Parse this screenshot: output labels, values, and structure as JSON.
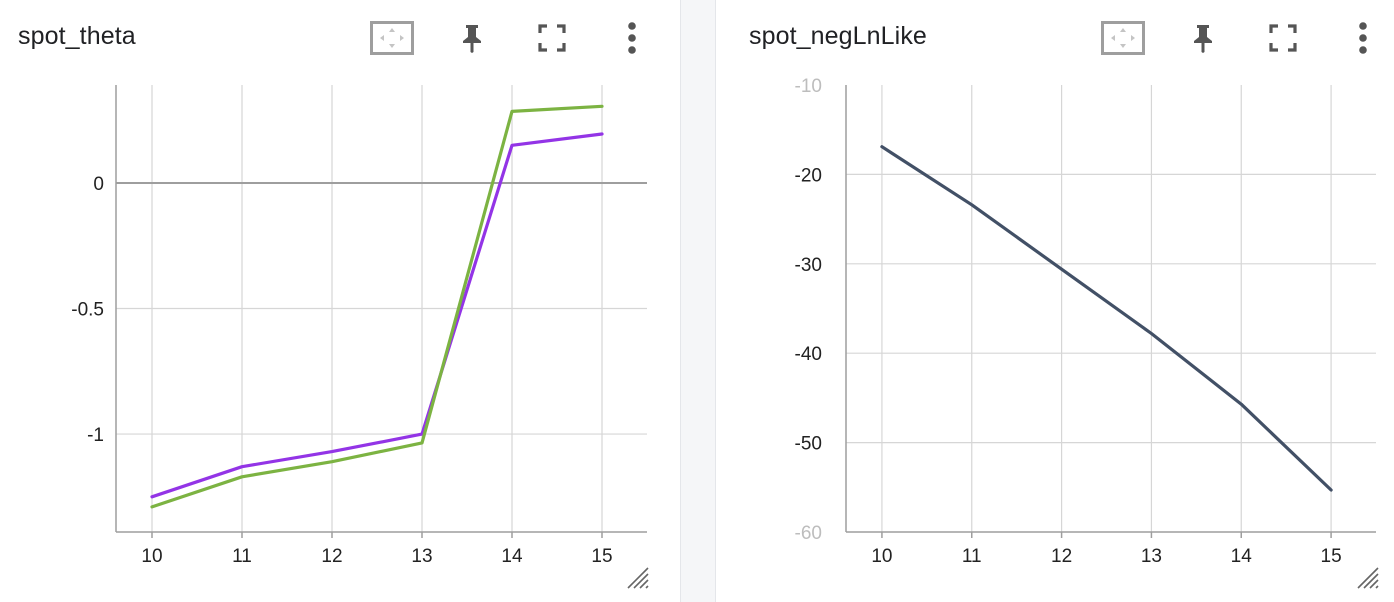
{
  "cards": [
    {
      "title": "spot_theta",
      "toolbar": [
        "fit-domain-icon",
        "pin-icon",
        "fullscreen-icon",
        "more-vert-icon"
      ],
      "chart_data": {
        "type": "line",
        "title": "spot_theta",
        "xlabel": "",
        "ylabel": "",
        "x": [
          10,
          11,
          12,
          13,
          14,
          15
        ],
        "xticks": [
          "10",
          "11",
          "12",
          "13",
          "14",
          "15"
        ],
        "xlim": [
          9.6,
          15.5
        ],
        "yticks": [
          0,
          -0.5,
          -1
        ],
        "ytick_labels": [
          "0",
          "-0.5",
          "-1"
        ],
        "ylim": [
          -1.39,
          0.39
        ],
        "zero_line": true,
        "grid": true,
        "series": [
          {
            "color": "#9334e6",
            "values": [
              -1.25,
              -1.13,
              -1.07,
              -1.0,
              0.15,
              0.195
            ]
          },
          {
            "color": "#7cb342",
            "values": [
              -1.29,
              -1.17,
              -1.11,
              -1.035,
              0.285,
              0.305
            ]
          }
        ]
      }
    },
    {
      "title": "spot_negLnLike",
      "toolbar": [
        "fit-domain-icon",
        "pin-icon",
        "fullscreen-icon",
        "more-vert-icon"
      ],
      "chart_data": {
        "type": "line",
        "title": "spot_negLnLike",
        "xlabel": "",
        "ylabel": "",
        "x": [
          10,
          11,
          12,
          13,
          14,
          15
        ],
        "xticks": [
          "10",
          "11",
          "12",
          "13",
          "14",
          "15"
        ],
        "xlim": [
          9.6,
          15.5
        ],
        "yticks": [
          -10,
          -20,
          -30,
          -40,
          -50,
          -60
        ],
        "ytick_labels": [
          "-10",
          "-20",
          "-30",
          "-40",
          "-50",
          "-60"
        ],
        "ytick_faint": [
          "-10",
          "-60"
        ],
        "ylim": [
          -60,
          -10
        ],
        "zero_line": false,
        "grid": true,
        "series": [
          {
            "color": "#425066",
            "values": [
              -16.9,
              -23.4,
              -30.6,
              -37.8,
              -45.7,
              -55.3
            ]
          }
        ]
      }
    }
  ]
}
